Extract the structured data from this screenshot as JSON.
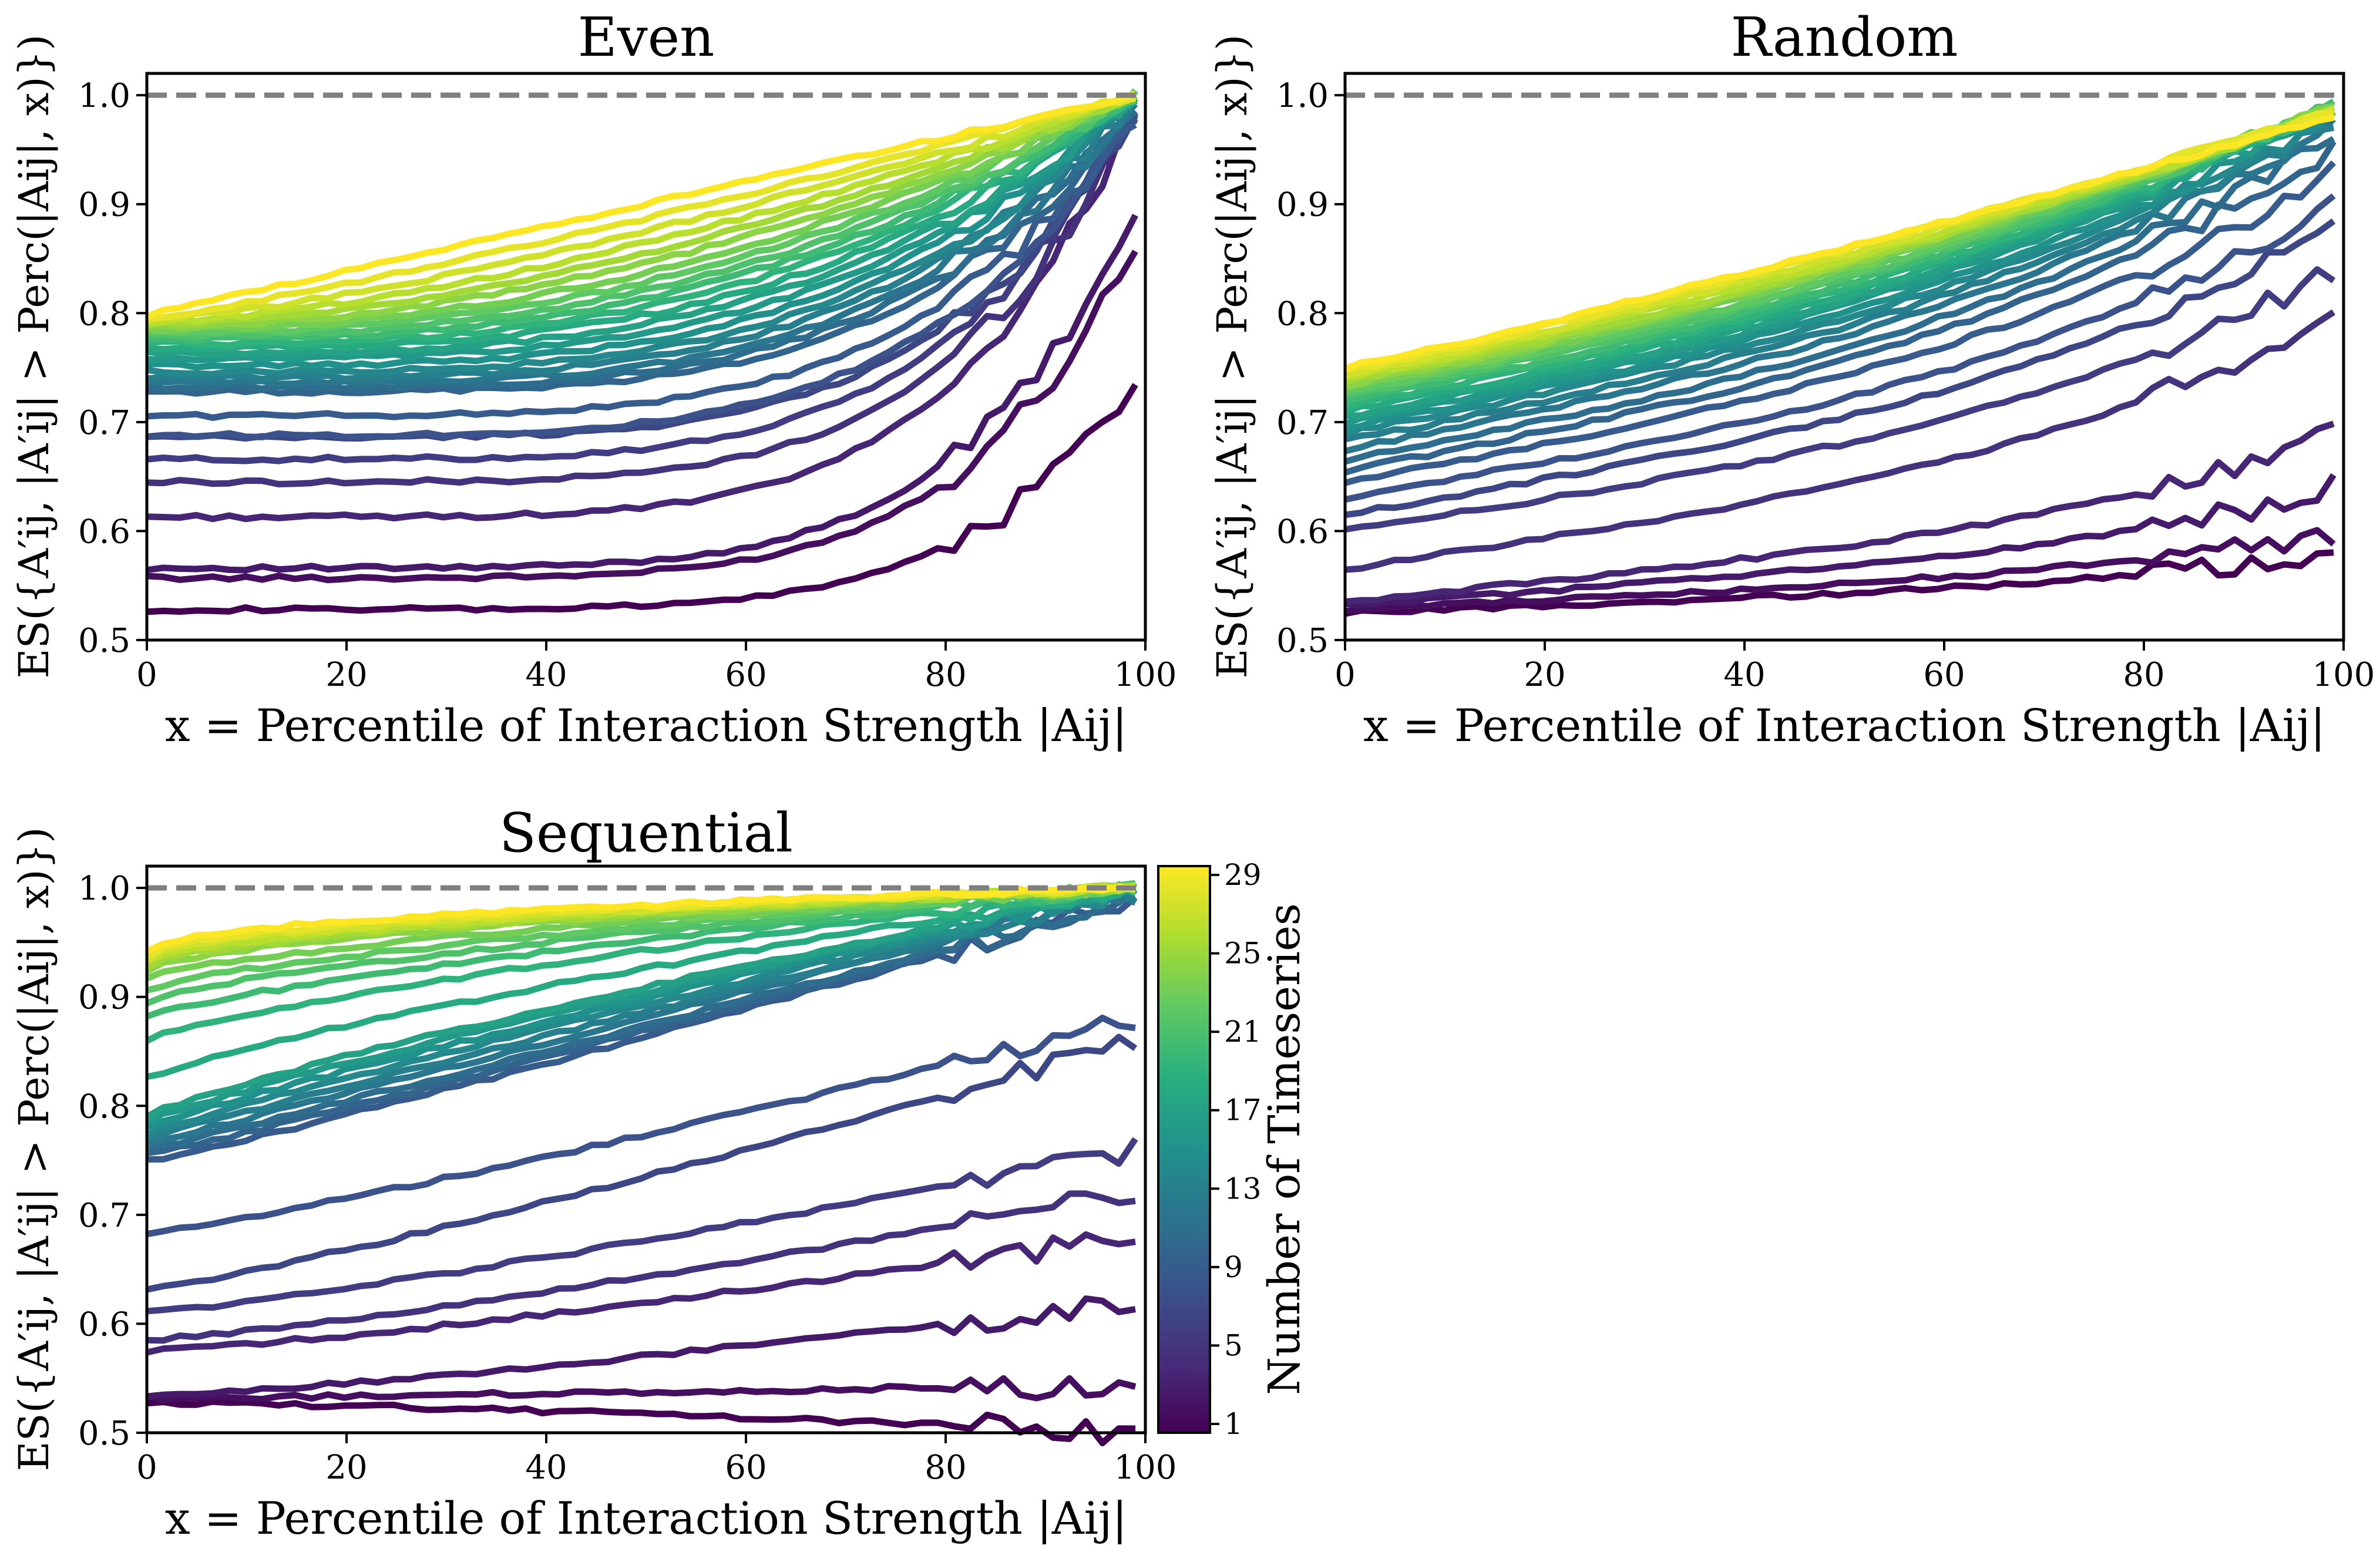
{
  "chart_data": [
    {
      "type": "line",
      "title": "Even",
      "xlabel": "x = Percentile of Interaction Strength |Aij|",
      "ylabel": "ES({A′ij, |A′ij| > Perc(|Aij|, x)})",
      "xlim": [
        0,
        100
      ],
      "ylim": [
        0.5,
        1.02
      ],
      "xticks": [
        "0",
        "20",
        "40",
        "60",
        "80",
        "100"
      ],
      "yticks": [
        "0.5",
        "0.6",
        "0.7",
        "0.8",
        "0.9",
        "1.0"
      ],
      "reference_line": 1.0,
      "grid": false,
      "series_starts": [
        0.528,
        0.557,
        0.566,
        0.613,
        0.645,
        0.666,
        0.686,
        0.688,
        0.706,
        0.728,
        0.732,
        0.736,
        0.741,
        0.746,
        0.752,
        0.758,
        0.763,
        0.768,
        0.772,
        0.776,
        0.779,
        0.782,
        0.785,
        0.788,
        0.79,
        0.792,
        0.794,
        0.796,
        0.798
      ],
      "series_ends": [
        0.74,
        0.865,
        0.89,
        0.99,
        0.985,
        0.99,
        0.98,
        0.985,
        0.98,
        0.985,
        0.99,
        0.99,
        0.995,
        0.995,
        0.998,
        0.998,
        1.0,
        1.0,
        1.0,
        1.0,
        1.0,
        1.0,
        1.0,
        1.0,
        1.0,
        1.0,
        1.0,
        1.0,
        1.0
      ]
    },
    {
      "type": "line",
      "title": "Random",
      "xlabel": "x = Percentile of Interaction Strength |Aij|",
      "ylabel": "ES({A′ij, |A′ij| > Perc(|Aij|, x)})",
      "xlim": [
        0,
        100
      ],
      "ylim": [
        0.5,
        1.02
      ],
      "xticks": [
        "0",
        "20",
        "40",
        "60",
        "80",
        "100"
      ],
      "yticks": [
        "0.5",
        "0.6",
        "0.7",
        "0.8",
        "0.9",
        "1.0"
      ],
      "reference_line": 1.0,
      "grid": false,
      "series_starts": [
        0.525,
        0.528,
        0.532,
        0.535,
        0.565,
        0.6,
        0.615,
        0.63,
        0.645,
        0.655,
        0.665,
        0.675,
        0.683,
        0.69,
        0.695,
        0.7,
        0.705,
        0.71,
        0.715,
        0.72,
        0.725,
        0.728,
        0.732,
        0.735,
        0.738,
        0.741,
        0.744,
        0.747,
        0.75
      ],
      "series_ends": [
        0.58,
        0.6,
        0.64,
        0.69,
        0.8,
        0.84,
        0.88,
        0.9,
        0.93,
        0.95,
        0.96,
        0.97,
        0.975,
        0.98,
        0.985,
        0.99,
        0.99,
        0.99,
        0.99,
        0.99,
        0.99,
        0.99,
        0.99,
        0.99,
        0.985,
        0.985,
        0.985,
        0.985,
        0.98
      ]
    },
    {
      "type": "line",
      "title": "Sequential",
      "xlabel": "x = Percentile of Interaction Strength |Aij|",
      "ylabel": "ES({A′ij, |A′ij| > Perc(|Aij|, x)})",
      "xlim": [
        0,
        100
      ],
      "ylim": [
        0.5,
        1.02
      ],
      "xticks": [
        "0",
        "20",
        "40",
        "60",
        "80",
        "100"
      ],
      "yticks": [
        "0.5",
        "0.6",
        "0.7",
        "0.8",
        "0.9",
        "1.0"
      ],
      "reference_line": 1.0,
      "grid": false,
      "series_starts": [
        0.528,
        0.532,
        0.535,
        0.575,
        0.585,
        0.61,
        0.632,
        0.682,
        0.75,
        0.755,
        0.76,
        0.765,
        0.77,
        0.775,
        0.78,
        0.785,
        0.79,
        0.825,
        0.86,
        0.88,
        0.895,
        0.905,
        0.915,
        0.925,
        0.928,
        0.931,
        0.934,
        0.937,
        0.94
      ],
      "series_ends": [
        0.5,
        0.545,
        0.62,
        0.68,
        0.72,
        0.76,
        0.86,
        0.88,
        0.99,
        0.99,
        0.99,
        0.995,
        0.995,
        0.998,
        1.0,
        1.0,
        1.0,
        1.0,
        1.0,
        1.0,
        1.0,
        1.0,
        1.0,
        1.0,
        1.0,
        1.0,
        1.0,
        1.0,
        1.0
      ]
    }
  ],
  "colorbar": {
    "label": "Number of Timeseries",
    "ticks": [
      "1",
      "5",
      "9",
      "13",
      "17",
      "21",
      "25",
      "29"
    ],
    "range": [
      1,
      29
    ],
    "colormap": "viridis"
  }
}
